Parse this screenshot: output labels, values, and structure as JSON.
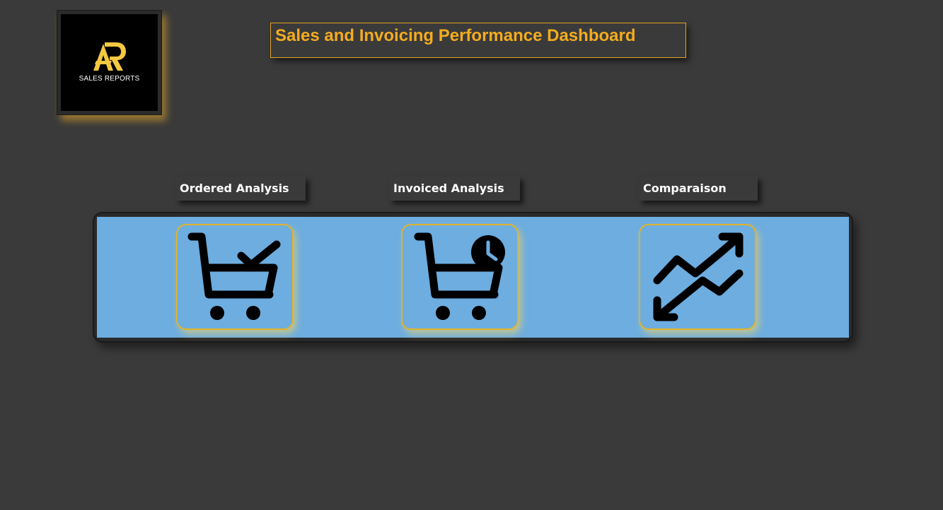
{
  "logo": {
    "text": "SALES REPORTS",
    "mark_color": "#f5c842",
    "icon": "ar-logo-icon"
  },
  "header": {
    "title": "Sales and Invoicing Performance Dashboard",
    "title_color": "#f4ac1f"
  },
  "nav": {
    "band_color": "#6dade0",
    "accent_border": "#e0b32a",
    "items": [
      {
        "label": "Ordered Analysis",
        "icon": "cart-check-icon"
      },
      {
        "label": "Invoiced Analysis",
        "icon": "cart-clock-icon"
      },
      {
        "label": "Comparaison",
        "icon": "trend-arrows-icon"
      }
    ]
  },
  "colors": {
    "background": "#3a3a3a",
    "label_text": "#ffffff"
  }
}
